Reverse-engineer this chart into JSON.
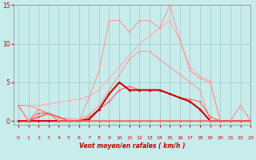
{
  "xlabel": "Vent moyen/en rafales ( km/h )",
  "background_color": "#c8ecec",
  "grid_color": "#a0cccc",
  "x_values": [
    0,
    1,
    2,
    3,
    4,
    5,
    6,
    7,
    8,
    9,
    10,
    11,
    12,
    13,
    14,
    15,
    16,
    17,
    18,
    19,
    20,
    21,
    22,
    23
  ],
  "ylim": [
    -0.5,
    15
  ],
  "xlim": [
    -0.5,
    23
  ],
  "series": [
    {
      "y": [
        2,
        2,
        2,
        2.2,
        2.4,
        2.6,
        2.8,
        3.2,
        4,
        5.5,
        7,
        8.5,
        10,
        11,
        12,
        13,
        10.5,
        7,
        5.8,
        5.2,
        0,
        0,
        2,
        0
      ],
      "color": "#ffaaaa",
      "linewidth": 0.8,
      "marker": "o",
      "markersize": 1.5
    },
    {
      "y": [
        2,
        2,
        1.5,
        0.8,
        0.5,
        0.3,
        0.2,
        0.8,
        2,
        4,
        6,
        8,
        9,
        9,
        8,
        7,
        6,
        5,
        4,
        0,
        0,
        0,
        0,
        0
      ],
      "color": "#ff9999",
      "linewidth": 0.8,
      "marker": "o",
      "markersize": 1.5
    },
    {
      "y": [
        0,
        0,
        0,
        0,
        0,
        0,
        0,
        3,
        6.5,
        13,
        13,
        11.5,
        13,
        13,
        12,
        15,
        10.5,
        6.5,
        5.5,
        5,
        0,
        0,
        2,
        0
      ],
      "color": "#ff9999",
      "linewidth": 0.8,
      "marker": "o",
      "markersize": 1.5
    },
    {
      "y": [
        2,
        0,
        1,
        1,
        0,
        0,
        0,
        0.5,
        1.5,
        2.5,
        4,
        4.5,
        4,
        4,
        4,
        3.5,
        3,
        2.8,
        2.5,
        0.5,
        0,
        0,
        0,
        0
      ],
      "color": "#ff6666",
      "linewidth": 0.9,
      "marker": "o",
      "markersize": 1.8
    },
    {
      "y": [
        0,
        0,
        0,
        0,
        0,
        0,
        0,
        0.2,
        1.5,
        3.5,
        5,
        4,
        4,
        4,
        4,
        3.5,
        3,
        2.5,
        1.5,
        0,
        0,
        0,
        0,
        0
      ],
      "color": "#cc0000",
      "linewidth": 1.5,
      "marker": "o",
      "markersize": 2.0
    },
    {
      "y": [
        0,
        0,
        0.5,
        1,
        0.5,
        0,
        0,
        0,
        0,
        0,
        0,
        0,
        0,
        0,
        0,
        0,
        0,
        0,
        0,
        0,
        0,
        0,
        0,
        0
      ],
      "color": "#ff4444",
      "linewidth": 0.9,
      "marker": "o",
      "markersize": 1.8
    },
    {
      "y": [
        0,
        0,
        0,
        0,
        0,
        0,
        0,
        0,
        0,
        0,
        0,
        0,
        0,
        0,
        0,
        0,
        0,
        0,
        0,
        0,
        0,
        0,
        0,
        0
      ],
      "color": "#ff0000",
      "linewidth": 0.9,
      "marker": "o",
      "markersize": 1.8
    },
    {
      "y": [
        2,
        0,
        1.5,
        1,
        0,
        0,
        0,
        0,
        0,
        0,
        0,
        0,
        0,
        0,
        0,
        0,
        0,
        0,
        0,
        0,
        0,
        0,
        0,
        0
      ],
      "color": "#ff8888",
      "linewidth": 0.8,
      "marker": "o",
      "markersize": 1.5
    }
  ],
  "yticks": [
    0,
    5,
    10,
    15
  ],
  "ytick_labels": [
    "0",
    "5",
    "10",
    "15"
  ],
  "xticks": [
    0,
    1,
    2,
    3,
    4,
    5,
    6,
    7,
    8,
    9,
    10,
    11,
    12,
    13,
    14,
    15,
    16,
    17,
    18,
    19,
    20,
    21,
    22,
    23
  ]
}
